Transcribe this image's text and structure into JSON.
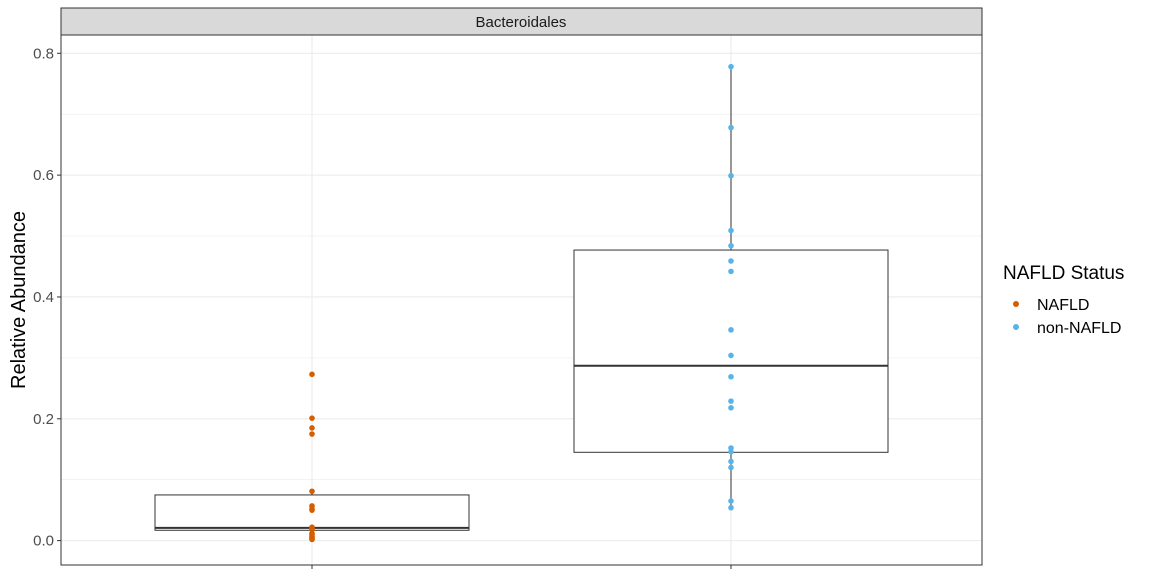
{
  "chart_data": {
    "type": "box",
    "facet_title": "Bacteroidales",
    "ylabel": "Relative Abundance",
    "xlabel": "",
    "ylim": [
      -0.04,
      0.83
    ],
    "yticks": [
      0.0,
      0.2,
      0.4,
      0.6,
      0.8
    ],
    "ytick_labels": [
      "0.0",
      "0.2",
      "0.4",
      "0.6",
      "0.8"
    ],
    "grid": true,
    "legend": {
      "title": "NAFLD Status",
      "position": "right",
      "entries": [
        {
          "label": "NAFLD",
          "color": "#D55E00"
        },
        {
          "label": "non-NAFLD",
          "color": "#56B4E9"
        }
      ]
    },
    "groups": [
      {
        "name": "NAFLD",
        "color": "#D55E00",
        "box": {
          "q1": 0.017,
          "median": 0.021,
          "q3": 0.075,
          "whisker_low": 0.002,
          "whisker_high": 0.082
        },
        "points": [
          0.273,
          0.201,
          0.185,
          0.175,
          0.081,
          0.057,
          0.052,
          0.05,
          0.022,
          0.02,
          0.018,
          0.012,
          0.01,
          0.007,
          0.005,
          0.003,
          0.002
        ]
      },
      {
        "name": "non-NAFLD",
        "color": "#56B4E9",
        "box": {
          "q1": 0.145,
          "median": 0.287,
          "q3": 0.477,
          "whisker_low": 0.053,
          "whisker_high": 0.778
        },
        "points": [
          0.778,
          0.678,
          0.599,
          0.509,
          0.484,
          0.459,
          0.442,
          0.346,
          0.304,
          0.269,
          0.229,
          0.218,
          0.152,
          0.146,
          0.13,
          0.12,
          0.065,
          0.054
        ]
      }
    ]
  },
  "colors": {
    "panel_border": "#333333",
    "grid": "#ebebeb",
    "strip_fill": "#d9d9d9"
  }
}
